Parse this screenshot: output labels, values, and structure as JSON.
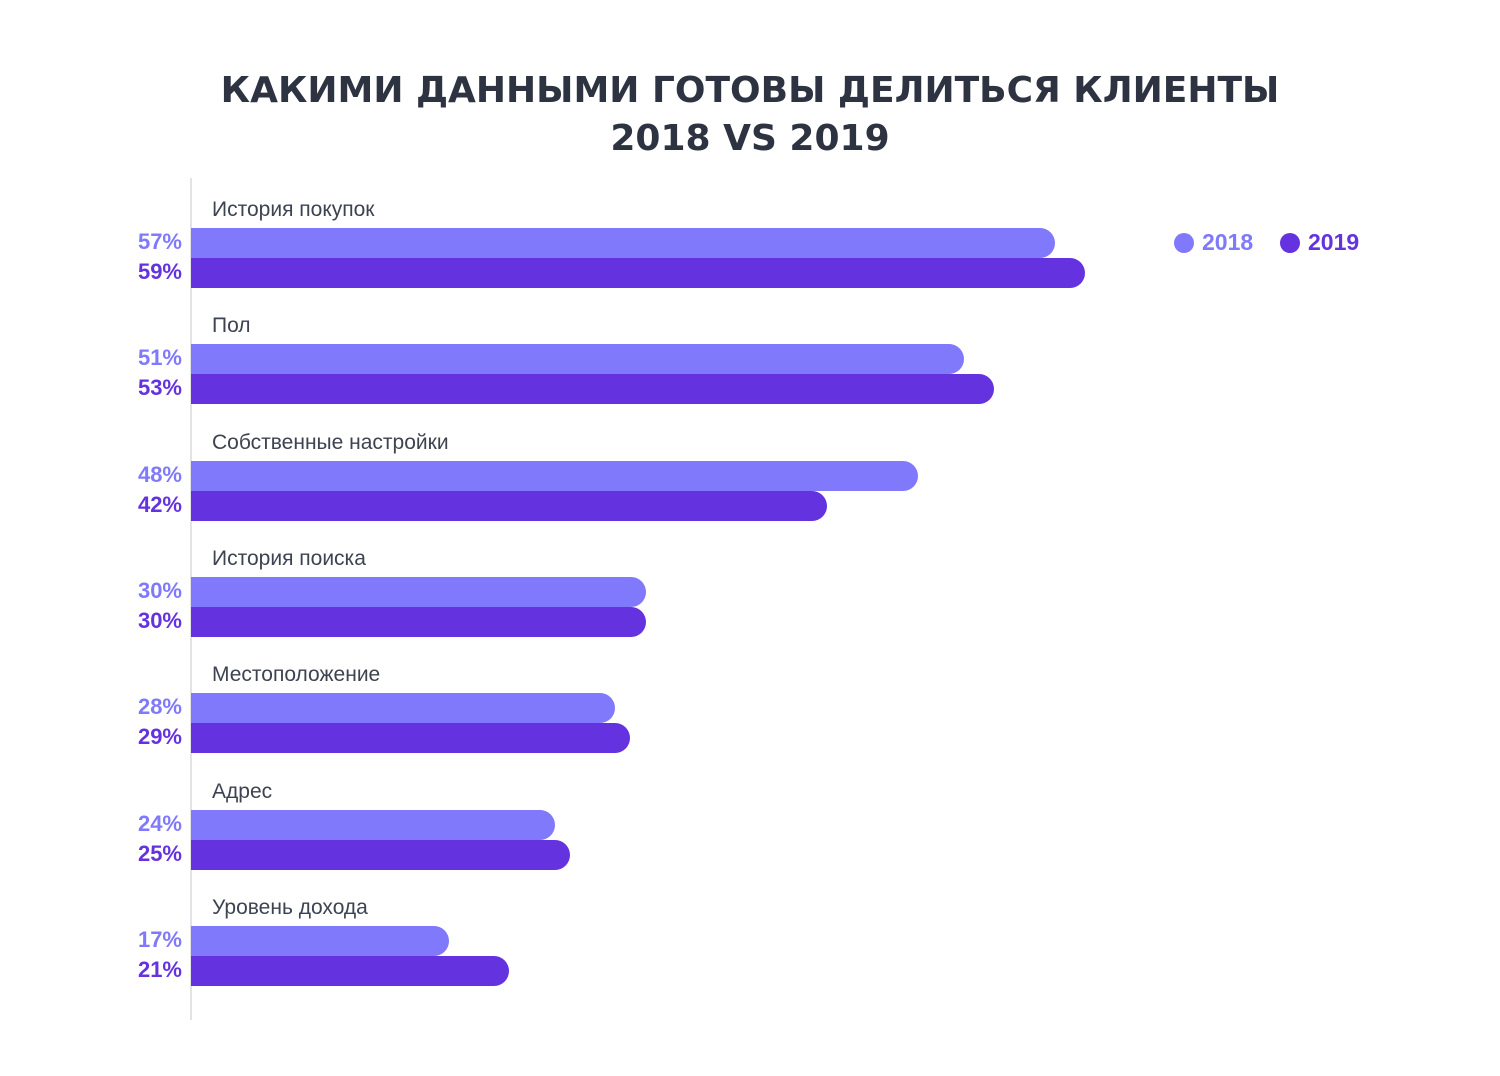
{
  "title_lines": [
    "КАКИМИ ДАННЫМИ ГОТОВЫ ДЕЛИТЬСЯ КЛИЕНТЫ",
    "2018 VS 2019"
  ],
  "colors": {
    "y2018": "#8079fb",
    "y2019": "#6433df",
    "title": "#2d3340",
    "label": "#3d4350"
  },
  "chart_data": {
    "type": "bar",
    "orientation": "horizontal",
    "title": "КАКИМИ ДАННЫМИ ГОТОВЫ ДЕЛИТЬСЯ КЛИЕНТЫ 2018 VS 2019",
    "categories": [
      "История покупок",
      "Пол",
      "Собственные настройки",
      "История поиска",
      "Местоположение",
      "Адрес",
      "Уровень дохода"
    ],
    "series": [
      {
        "name": "2018",
        "values": [
          57,
          51,
          48,
          30,
          28,
          24,
          17
        ],
        "labels": [
          "57%",
          "51%",
          "48%",
          "30%",
          "28%",
          "24%",
          "17%"
        ]
      },
      {
        "name": "2019",
        "values": [
          59,
          53,
          42,
          30,
          29,
          25,
          21
        ],
        "labels": [
          "59%",
          "53%",
          "42%",
          "30%",
          "29%",
          "25%",
          "21%"
        ]
      }
    ],
    "value_unit": "%",
    "legend": "top-right",
    "grid": false
  }
}
